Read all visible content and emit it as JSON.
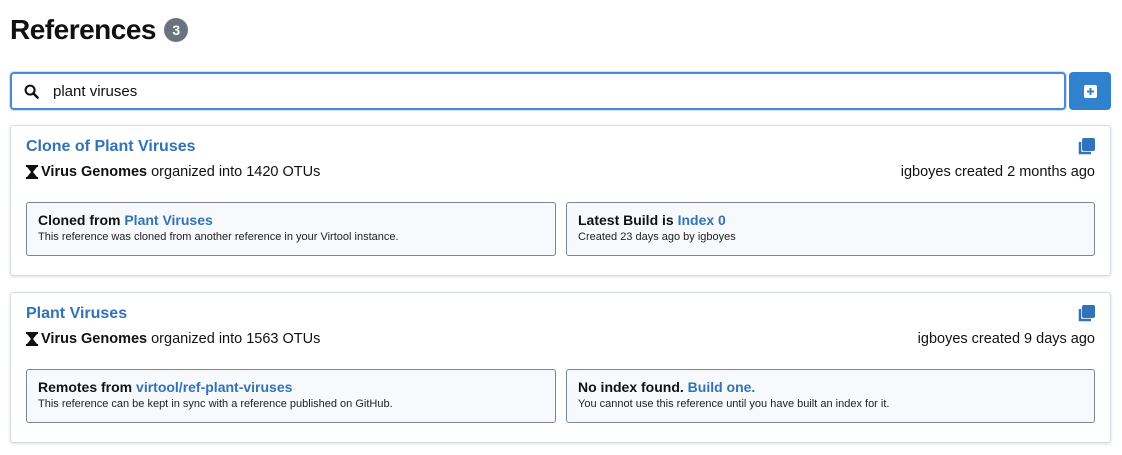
{
  "header": {
    "title": "References",
    "count": "3"
  },
  "search": {
    "value": "plant viruses",
    "icon": "search-icon"
  },
  "add_button": {
    "icon": "plus-square-icon"
  },
  "accent": "#3182ce",
  "references": [
    {
      "name": "Clone of Plant Viruses",
      "data_type": "Virus Genomes",
      "organized": "organized into 1420 OTUs",
      "created": "igboyes created 2 months ago",
      "left": {
        "prefix": "Cloned from",
        "link": "Plant Viruses",
        "sub": "This reference was cloned from another reference in your Virtool instance."
      },
      "right": {
        "prefix": "Latest Build is",
        "link": "Index 0",
        "sub": "Created 23 days ago by igboyes"
      }
    },
    {
      "name": "Plant Viruses",
      "data_type": "Virus Genomes",
      "organized": "organized into 1563 OTUs",
      "created": "igboyes created 9 days ago",
      "left": {
        "prefix": "Remotes from",
        "link": "virtool/ref-plant-viruses",
        "sub": "This reference can be kept in sync with a reference published on GitHub."
      },
      "right": {
        "prefix": "No index found.",
        "link": "Build one.",
        "sub": "You cannot use this reference until you have built an index for it."
      }
    }
  ]
}
